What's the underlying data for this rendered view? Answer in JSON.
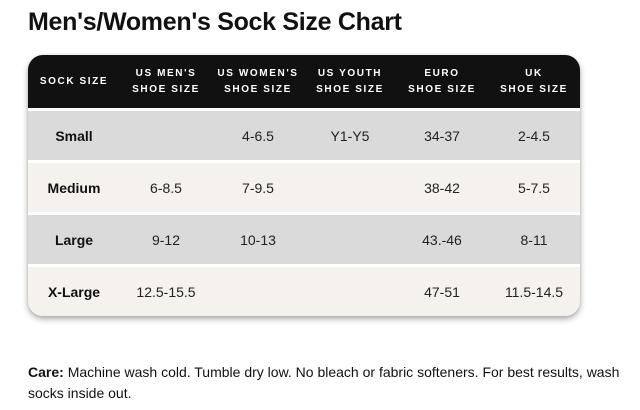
{
  "page": {
    "title": "Men's/Women's Sock Size Chart"
  },
  "table": {
    "headers": [
      "SOCK SIZE",
      "US MEN'S\nSHOE SIZE",
      "US WOMEN'S\nSHOE SIZE",
      "US YOUTH\nSHOE SIZE",
      "EURO\nSHOE SIZE",
      "UK\nSHOE SIZE"
    ],
    "rows": [
      [
        "Small",
        "",
        "4-6.5",
        "Y1-Y5",
        "34-37",
        "2-4.5"
      ],
      [
        "Medium",
        "6-8.5",
        "7-9.5",
        "",
        "38-42",
        "5-7.5"
      ],
      [
        "Large",
        "9-12",
        "10-13",
        "",
        "43.-46",
        "8-11"
      ],
      [
        "X-Large",
        "12.5-15.5",
        "",
        "",
        "47-51",
        "11.5-14.5"
      ]
    ]
  },
  "care": {
    "label": "Care:",
    "text": "Machine wash cold. Tumble dry low. No bleach or fabric softeners. For best results, wash socks inside out."
  },
  "colors": {
    "header_bg": "#111111",
    "header_text": "#ffffff",
    "row_gray": "#dadada",
    "row_cream": "#f5f2ee",
    "text": "#1a1a1a",
    "page_bg": "#ffffff"
  }
}
